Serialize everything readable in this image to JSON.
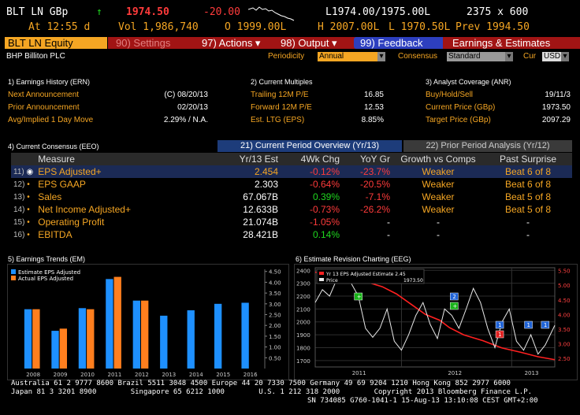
{
  "quote": {
    "ticker": "BLT LN GBp",
    "arrow": "↑",
    "last": "1974.50",
    "change": "-20.00",
    "bid_ask": "L1974.00/1975.00L",
    "size": "2375 x 600",
    "at": "At 12:55 d",
    "volume": "Vol 1,986,740",
    "open": "O 1999.00L",
    "high": "H 2007.00L",
    "low": "L 1970.50L",
    "prev": "Prev 1994.50"
  },
  "toolbar": {
    "security": "BLT LN Equity",
    "settings": "90) Settings",
    "actions": "97) Actions ▾",
    "output": "98) Output ▾",
    "feedback": "99) Feedback",
    "page_title": "Earnings & Estimates"
  },
  "company": "BHP Billiton PLC",
  "controls": {
    "periodicity_label": "Periodicity",
    "periodicity_value": "Annual",
    "consensus_label": "Consensus",
    "consensus_value": "Standard",
    "cur_label": "Cur",
    "cur_value": "USD"
  },
  "earnings_history": {
    "title": "1) Earnings History (ERN)",
    "rows": [
      {
        "label": "Next Announcement",
        "value": "(C) 08/20/13"
      },
      {
        "label": "Prior Announcement",
        "value": "02/20/13"
      },
      {
        "label": "Avg/Implied 1 Day Move",
        "value": "2.29% / N.A."
      }
    ]
  },
  "current_multiples": {
    "title": "2) Current Multiples",
    "rows": [
      {
        "label": "Trailing 12M P/E",
        "value": "16.85"
      },
      {
        "label": "Forward 12M P/E",
        "value": "12.53"
      },
      {
        "label": "Est. LTG (EPS)",
        "value": "8.85%"
      }
    ]
  },
  "analyst_coverage": {
    "title": "3) Analyst Coverage (ANR)",
    "rows": [
      {
        "label": "Buy/Hold/Sell",
        "value": "19/11/3"
      },
      {
        "label": "Current Price (GBp)",
        "value": "1973.50"
      },
      {
        "label": "Target Price (GBp)",
        "value": "2097.29"
      }
    ]
  },
  "consensus": {
    "title": "4) Current Consensus (EEO)",
    "tab_active": "21) Current Period Overview (Yr/13)",
    "tab_other": "22) Prior Period Analysis (Yr/12)",
    "columns": [
      "Measure",
      "Yr/13 Est",
      "4Wk Chg",
      "YoY Gr",
      "Growth vs Comps",
      "Past Surprise"
    ],
    "rows": [
      {
        "idx": "11)",
        "measure": "EPS Adjusted+",
        "est": "2.454",
        "chg": "-0.12%",
        "yoy": "-23.7%",
        "comps": "Weaker",
        "surprise": "Beat 6 of 8"
      },
      {
        "idx": "12)",
        "measure": "EPS GAAP",
        "est": "2.303",
        "chg": "-0.64%",
        "yoy": "-20.5%",
        "comps": "Weaker",
        "surprise": "Beat 6 of 8"
      },
      {
        "idx": "13)",
        "measure": "Sales",
        "est": "67.067B",
        "chg": "0.39%",
        "yoy": "-7.1%",
        "comps": "Weaker",
        "surprise": "Beat 5 of 8"
      },
      {
        "idx": "14)",
        "measure": "Net Income Adjusted+",
        "est": "12.633B",
        "chg": "-0.73%",
        "yoy": "-26.2%",
        "comps": "Weaker",
        "surprise": "Beat 5 of 8"
      },
      {
        "idx": "15)",
        "measure": "Operating Profit",
        "est": "21.074B",
        "chg": "-1.05%",
        "yoy": "-",
        "comps": "-",
        "surprise": "-"
      },
      {
        "idx": "16)",
        "measure": "EBITDA",
        "est": "28.421B",
        "chg": "0.14%",
        "yoy": "-",
        "comps": "-",
        "surprise": "-"
      }
    ]
  },
  "trends": {
    "title": "5) Earnings Trends (EM)"
  },
  "revision": {
    "title": "6) Estimate Revision Charting (EEG)",
    "legend_est": "Yr 13 EPS Adjusted Estimate",
    "legend_est_val": "2.45",
    "legend_price": "Price",
    "legend_price_val": "1973.50"
  },
  "footer": {
    "line1": "Australia 61 2 9777 8600 Brazil 5511 3048 4500 Europe 44 20 7330 7500 Germany 49 69 9204 1210 Hong Kong 852 2977 6000",
    "line2": "Japan 81 3 3201 8900        Singapore 65 6212 1000        U.S. 1 212 318 2000        Copyright 2013 Bloomberg Finance L.P.",
    "line3": "SN 734085 G760-1041-1 15-Aug-13 13:10:08 CEST GMT+2:00"
  },
  "chart_data": [
    {
      "type": "bar",
      "categories": [
        "2008",
        "2009",
        "2010",
        "2011",
        "2012",
        "2013",
        "2014",
        "2015",
        "2016"
      ],
      "series": [
        {
          "name": "Estimate EPS Adjusted",
          "color": "#1e90ff",
          "values": [
            2.75,
            1.75,
            2.8,
            4.15,
            3.15,
            2.45,
            2.7,
            3.0,
            3.05
          ]
        },
        {
          "name": "Actual EPS Adjusted",
          "color": "#ff7f1e",
          "values": [
            2.75,
            1.85,
            2.75,
            4.25,
            3.15,
            null,
            null,
            null,
            null
          ]
        }
      ],
      "right_ticks": [
        "4.50",
        "4.00",
        "3.50",
        "3.00",
        "2.50",
        "2.00",
        "1.50",
        "1.00",
        "0.50"
      ],
      "ylim": [
        0,
        4.6
      ],
      "legend_position": "top-left"
    },
    {
      "type": "line",
      "x_labels": [
        "2011",
        "2012",
        "2013"
      ],
      "left_ticks": [
        "2400",
        "2300",
        "2200",
        "2100",
        "2000",
        "1900",
        "1800",
        "1700"
      ],
      "right_ticks": [
        "5.50",
        "5.00",
        "4.50",
        "4.00",
        "3.50",
        "3.00",
        "2.50"
      ],
      "series": [
        {
          "name": "Yr 13 EPS Adjusted Estimate",
          "axis": "right",
          "color": "#ff2020",
          "x": [
            0.0,
            0.1,
            0.2,
            0.28,
            0.34,
            0.4,
            0.46,
            0.52,
            0.56,
            0.62,
            0.7,
            0.78,
            0.86,
            0.93,
            1.0
          ],
          "y": [
            5.45,
            5.3,
            5.15,
            4.95,
            4.7,
            4.35,
            4.0,
            3.8,
            3.55,
            3.3,
            3.1,
            2.85,
            2.7,
            2.55,
            2.45
          ]
        },
        {
          "name": "Price",
          "axis": "left",
          "color": "#e8e8e8",
          "x": [
            0.0,
            0.03,
            0.06,
            0.09,
            0.12,
            0.15,
            0.18,
            0.21,
            0.24,
            0.27,
            0.3,
            0.33,
            0.36,
            0.39,
            0.42,
            0.45,
            0.48,
            0.51,
            0.54,
            0.57,
            0.6,
            0.63,
            0.66,
            0.69,
            0.72,
            0.75,
            0.78,
            0.81,
            0.84,
            0.87,
            0.9,
            0.93,
            0.96,
            1.0
          ],
          "y": [
            2150,
            2250,
            2200,
            2330,
            2380,
            2300,
            2200,
            1950,
            1880,
            1950,
            2100,
            1850,
            1780,
            1900,
            2050,
            2150,
            1980,
            1870,
            2100,
            2050,
            1950,
            2100,
            2260,
            2150,
            1950,
            1800,
            2000,
            2100,
            1850,
            1780,
            1900,
            1750,
            1820,
            1973
          ]
        }
      ],
      "markers": [
        {
          "x": 0.18,
          "label": "+",
          "color": "#19b319"
        },
        {
          "x": 0.58,
          "label": "2",
          "color": "#1e62d6"
        },
        {
          "x": 0.58,
          "label": "+",
          "color": "#19b319"
        },
        {
          "x": 0.77,
          "label": "1",
          "color": "#1e62d6"
        },
        {
          "x": 0.77,
          "label": "1",
          "color": "#e02020"
        },
        {
          "x": 0.89,
          "label": "1",
          "color": "#1e62d6"
        },
        {
          "x": 0.96,
          "label": "1",
          "color": "#1e62d6"
        }
      ],
      "ylim_left": [
        1650,
        2420
      ],
      "ylim_right": [
        2.2,
        5.6
      ]
    }
  ]
}
